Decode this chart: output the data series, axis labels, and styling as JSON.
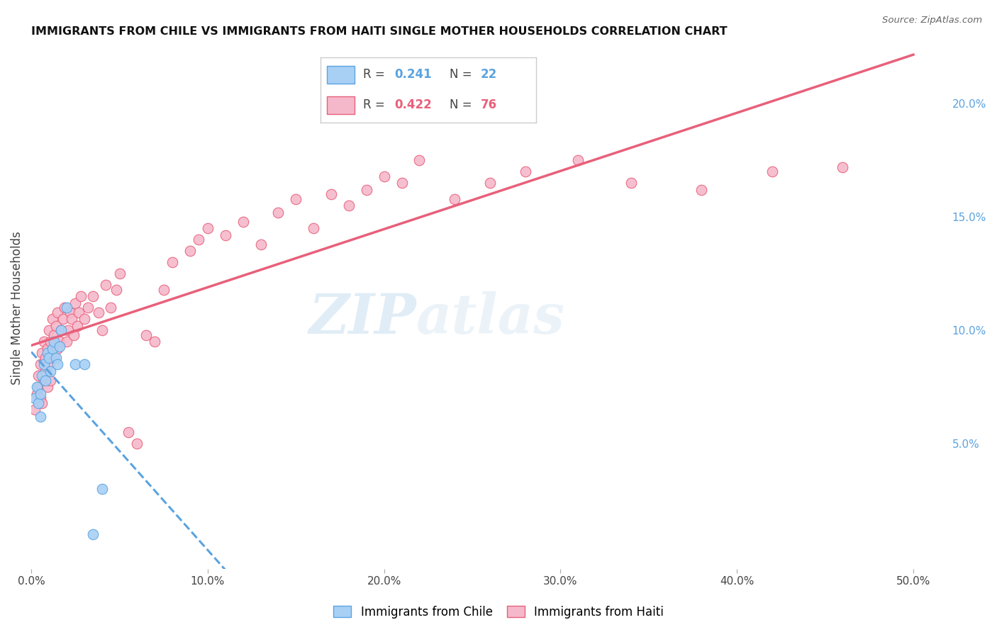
{
  "title": "IMMIGRANTS FROM CHILE VS IMMIGRANTS FROM HAITI SINGLE MOTHER HOUSEHOLDS CORRELATION CHART",
  "source_text": "Source: ZipAtlas.com",
  "ylabel": "Single Mother Households",
  "x_ticks": [
    0.0,
    0.1,
    0.2,
    0.3,
    0.4,
    0.5
  ],
  "x_tick_labels": [
    "0.0%",
    "10.0%",
    "20.0%",
    "30.0%",
    "40.0%",
    "50.0%"
  ],
  "y_ticks_right": [
    0.05,
    0.1,
    0.15,
    0.2
  ],
  "y_tick_labels_right": [
    "5.0%",
    "10.0%",
    "15.0%",
    "20.0%"
  ],
  "xlim": [
    0.0,
    0.52
  ],
  "ylim": [
    -0.005,
    0.225
  ],
  "chile_color": "#a8d0f5",
  "haiti_color": "#f5b8cb",
  "chile_edge_color": "#5ba3e0",
  "haiti_edge_color": "#e8607a",
  "chile_line_color": "#5ba3e0",
  "haiti_line_color": "#e8607a",
  "watermark_color": "#c8dff0",
  "grid_color": "#e0e0e0",
  "background_color": "#ffffff",
  "right_tick_color": "#5ba3e0",
  "chile_scatter_x": [
    0.002,
    0.003,
    0.004,
    0.005,
    0.005,
    0.006,
    0.007,
    0.008,
    0.009,
    0.01,
    0.011,
    0.012,
    0.013,
    0.014,
    0.015,
    0.016,
    0.017,
    0.02,
    0.025,
    0.03,
    0.035,
    0.04
  ],
  "chile_scatter_y": [
    0.07,
    0.075,
    0.068,
    0.072,
    0.062,
    0.08,
    0.085,
    0.078,
    0.09,
    0.088,
    0.082,
    0.092,
    0.095,
    0.088,
    0.085,
    0.093,
    0.1,
    0.11,
    0.085,
    0.085,
    0.01,
    0.03
  ],
  "haiti_scatter_x": [
    0.002,
    0.003,
    0.004,
    0.004,
    0.005,
    0.005,
    0.006,
    0.006,
    0.007,
    0.007,
    0.008,
    0.008,
    0.009,
    0.009,
    0.01,
    0.01,
    0.011,
    0.011,
    0.012,
    0.012,
    0.013,
    0.013,
    0.014,
    0.015,
    0.015,
    0.016,
    0.017,
    0.018,
    0.019,
    0.02,
    0.021,
    0.022,
    0.023,
    0.024,
    0.025,
    0.026,
    0.027,
    0.028,
    0.03,
    0.032,
    0.035,
    0.038,
    0.04,
    0.042,
    0.045,
    0.048,
    0.05,
    0.055,
    0.06,
    0.065,
    0.07,
    0.075,
    0.08,
    0.09,
    0.095,
    0.1,
    0.11,
    0.12,
    0.13,
    0.14,
    0.15,
    0.16,
    0.17,
    0.18,
    0.19,
    0.2,
    0.21,
    0.22,
    0.24,
    0.26,
    0.28,
    0.31,
    0.34,
    0.38,
    0.42,
    0.46
  ],
  "haiti_scatter_y": [
    0.065,
    0.072,
    0.08,
    0.075,
    0.085,
    0.07,
    0.09,
    0.068,
    0.078,
    0.095,
    0.082,
    0.088,
    0.075,
    0.092,
    0.085,
    0.1,
    0.078,
    0.095,
    0.09,
    0.105,
    0.088,
    0.098,
    0.102,
    0.092,
    0.108,
    0.095,
    0.1,
    0.105,
    0.11,
    0.095,
    0.1,
    0.108,
    0.105,
    0.098,
    0.112,
    0.102,
    0.108,
    0.115,
    0.105,
    0.11,
    0.115,
    0.108,
    0.1,
    0.12,
    0.11,
    0.118,
    0.125,
    0.055,
    0.05,
    0.098,
    0.095,
    0.118,
    0.13,
    0.135,
    0.14,
    0.145,
    0.142,
    0.148,
    0.138,
    0.152,
    0.158,
    0.145,
    0.16,
    0.155,
    0.162,
    0.168,
    0.165,
    0.175,
    0.158,
    0.165,
    0.17,
    0.175,
    0.165,
    0.162,
    0.17,
    0.172
  ]
}
